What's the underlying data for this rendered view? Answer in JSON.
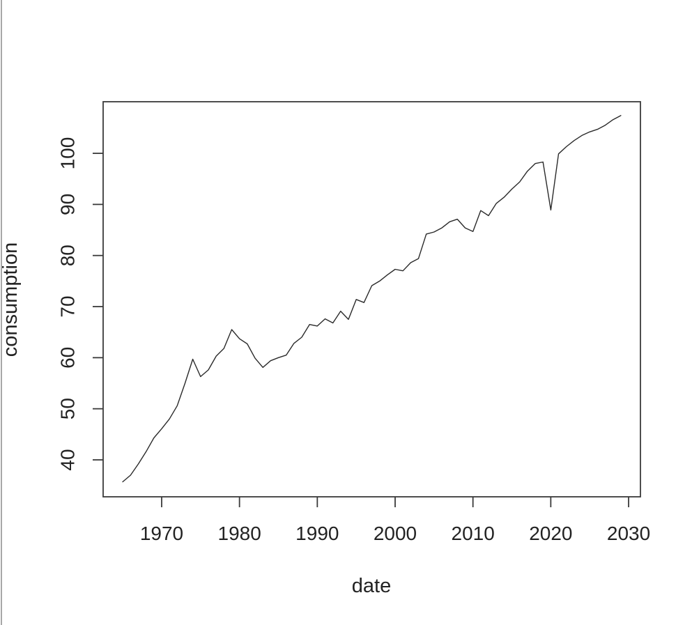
{
  "chart_data": {
    "type": "line",
    "title": "",
    "xlabel": "date",
    "ylabel": "consumption",
    "x_ticks": [
      1970,
      1980,
      1990,
      2000,
      2010,
      2020,
      2030
    ],
    "y_ticks": [
      40,
      50,
      60,
      70,
      80,
      90,
      100
    ],
    "xlim": [
      1962.48,
      2031.52
    ],
    "ylim": [
      32.77,
      110.1
    ],
    "grid": false,
    "legend": null,
    "line_color": "#2a2a2a",
    "background_color": "#ffffff",
    "series": [
      {
        "name": "consumption",
        "x": [
          1965,
          1966,
          1967,
          1968,
          1969,
          1970,
          1971,
          1972,
          1973,
          1974,
          1975,
          1976,
          1977,
          1978,
          1979,
          1980,
          1981,
          1982,
          1983,
          1984,
          1985,
          1986,
          1987,
          1988,
          1989,
          1990,
          1991,
          1992,
          1993,
          1994,
          1995,
          1996,
          1997,
          1998,
          1999,
          2000,
          2001,
          2002,
          2003,
          2004,
          2005,
          2006,
          2007,
          2008,
          2009,
          2010,
          2011,
          2012,
          2013,
          2014,
          2015,
          2016,
          2017,
          2018,
          2019,
          2020,
          2021,
          2022,
          2023,
          2024,
          2025,
          2026,
          2027,
          2028,
          2029
        ],
        "values": [
          35.7,
          37.0,
          39.2,
          41.6,
          44.3,
          46.1,
          48.0,
          50.6,
          55.0,
          59.7,
          56.3,
          57.6,
          60.3,
          61.8,
          65.5,
          63.7,
          62.7,
          59.9,
          58.1,
          59.4,
          60.0,
          60.5,
          62.8,
          64.0,
          66.5,
          66.2,
          67.6,
          66.8,
          69.1,
          67.5,
          71.4,
          70.8,
          74.1,
          75.0,
          76.2,
          77.3,
          77.0,
          78.6,
          79.4,
          84.2,
          84.6,
          85.4,
          86.6,
          87.1,
          85.4,
          84.7,
          88.8,
          87.8,
          90.2,
          91.4,
          93.0,
          94.4,
          96.5,
          98.0,
          98.3,
          88.9,
          99.9,
          101.3,
          102.5,
          103.5,
          104.2,
          104.7,
          105.5,
          106.6,
          107.4
        ]
      }
    ]
  }
}
